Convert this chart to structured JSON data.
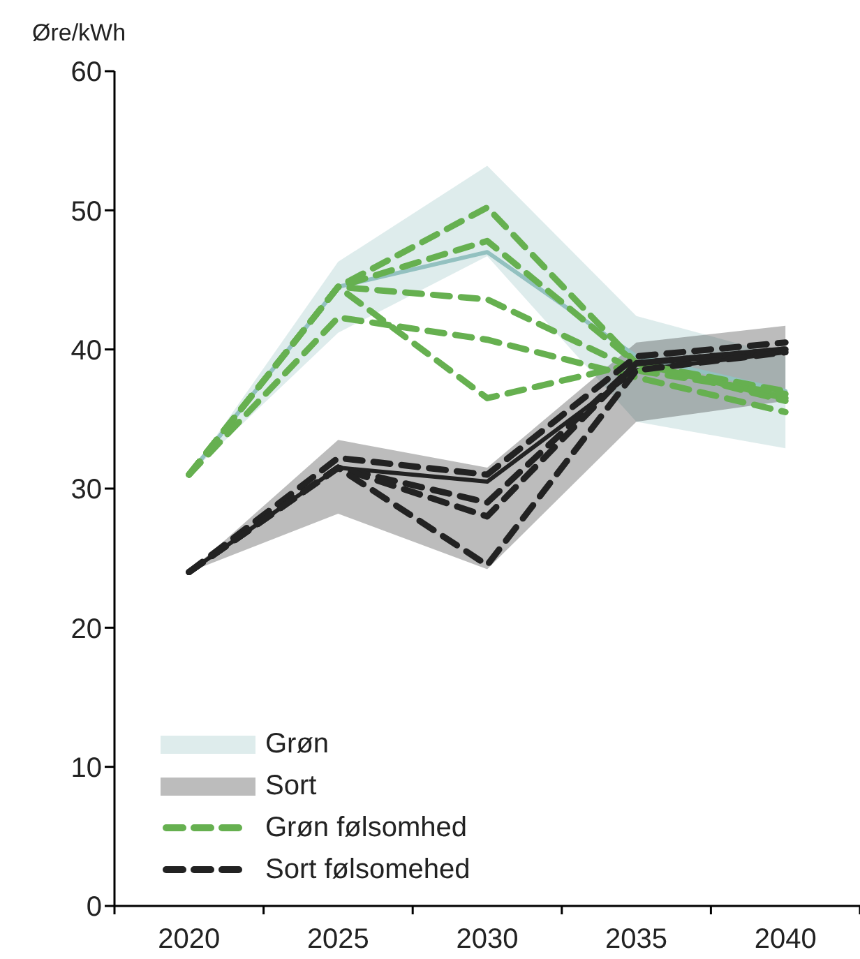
{
  "chart_data": {
    "type": "line",
    "ylabel": "Øre/kWh",
    "categories": [
      "2020",
      "2025",
      "2030",
      "2035",
      "2040"
    ],
    "ylim": [
      0,
      60
    ],
    "yticks": [
      0,
      10,
      20,
      30,
      40,
      50,
      60
    ],
    "grid": false,
    "legend": "bottom left",
    "marker": "none",
    "series": [
      {
        "name": "Grøn",
        "color": "#93c1c0",
        "line_style": "solid",
        "values": [
          31,
          44.5,
          47,
          39.5,
          37
        ],
        "lower": [
          31,
          41.2,
          46.7,
          34.8,
          32.9
        ],
        "upper": [
          31,
          46.3,
          53.2,
          42.4,
          39.5
        ]
      },
      {
        "name": "Sort",
        "color": "#222222",
        "line_style": "solid",
        "values": [
          24,
          31.5,
          30.5,
          38.5,
          39.8
        ],
        "lower": [
          24,
          28.2,
          24.2,
          34.8,
          36.3
        ],
        "upper": [
          24,
          33.5,
          31.5,
          40.5,
          41.7
        ]
      },
      {
        "name": "Grøn følsomhed",
        "color": "#66b050",
        "line_style": "dashed",
        "values": [
          31,
          44.5,
          50.2,
          39,
          37
        ]
      },
      {
        "color": "#66b050",
        "line_style": "dashed",
        "values": [
          31,
          44.5,
          47.8,
          39,
          36.5
        ]
      },
      {
        "color": "#66b050",
        "line_style": "dashed",
        "values": [
          31,
          44.5,
          43.6,
          38.5,
          36.8
        ]
      },
      {
        "color": "#66b050",
        "line_style": "dashed",
        "values": [
          31,
          42.3,
          40.7,
          38,
          35.5
        ]
      },
      {
        "color": "#66b050",
        "line_style": "dashed",
        "values": [
          31,
          44.5,
          36.5,
          39,
          36.3
        ]
      },
      {
        "name": "Sort følsomehed",
        "color": "#222222",
        "line_style": "dashed",
        "values": [
          24,
          32.2,
          31,
          39.5,
          40.5
        ]
      },
      {
        "color": "#222222",
        "line_style": "dashed",
        "values": [
          24,
          31.5,
          29,
          39,
          40
        ]
      },
      {
        "color": "#222222",
        "line_style": "dashed",
        "values": [
          24,
          31.5,
          28,
          39,
          40
        ]
      },
      {
        "color": "#222222",
        "line_style": "dashed",
        "values": [
          24,
          31.5,
          24.5,
          38.5,
          39.8
        ]
      }
    ]
  }
}
